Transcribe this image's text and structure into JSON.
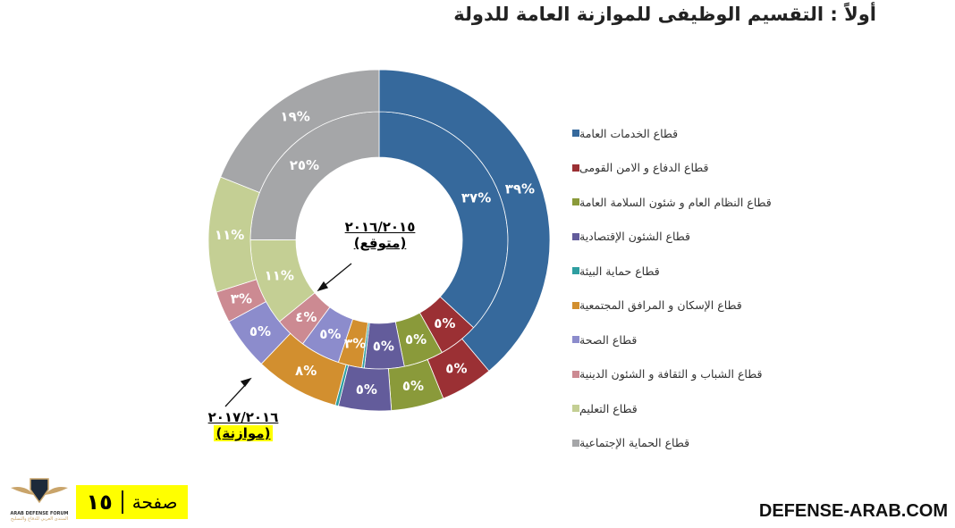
{
  "title": "أولاً : التقسيم الوظيفى للموازنة العامة للدولة",
  "inner_label": {
    "year": "٢٠١٦/٢٠١٥",
    "note": "(متوقع)"
  },
  "outer_label": {
    "year": "٢٠١٧/٢٠١٦",
    "note": "(موازنة)"
  },
  "footer": {
    "page_word": "صفحة",
    "page_number": "١٥",
    "site": "DEFENSE-ARAB.COM",
    "logo_en": "ARAB DEFENSE FORUM",
    "logo_ar": "المنتدى العربي للدفاع والتسليح"
  },
  "chart_data": {
    "type": "pie",
    "subtype": "double-donut",
    "title": "أولاً : التقسيم الوظيفى للموازنة العامة للدولة",
    "legend_position": "right",
    "categories": [
      "قطاع الخدمات العامة",
      "قطاع الدفاع و الامن القومى",
      "قطاع النظام العام و شئون السلامة العامة",
      "قطاع الشئون الإقتصادية",
      "قطاع حماية البيئة",
      "قطاع الإسكان و المرافق المجتمعية",
      "قطاع الصحة",
      "قطاع الشباب و الثقافة و الشئون الدينية",
      "قطاع التعليم",
      "قطاع الحماية الإجتماعية"
    ],
    "colors": [
      "#36699c",
      "#9b3034",
      "#8a9a3a",
      "#635c9b",
      "#2e9ea0",
      "#d28f2f",
      "#8c8ccc",
      "#cc8a92",
      "#c4cf94",
      "#a5a6a8"
    ],
    "series": [
      {
        "name": "٢٠١٦/٢٠١٥ (متوقع)",
        "ring": "inner",
        "values": [
          37,
          5,
          5,
          5,
          0.3,
          3,
          5,
          4,
          11,
          25
        ],
        "labels": [
          "٣٧%",
          "٥%",
          "٥%",
          "٥%",
          "",
          "٣%",
          "٥%",
          "٤%",
          "١١%",
          "٢٥%"
        ]
      },
      {
        "name": "٢٠١٧/٢٠١٦ (موازنة)",
        "ring": "outer",
        "values": [
          39,
          5,
          5,
          5,
          0.3,
          8,
          5,
          3,
          11,
          19
        ],
        "labels": [
          "٣٩%",
          "٥%",
          "٥%",
          "٥%",
          "",
          "٨%",
          "٥%",
          "٣%",
          "١١%",
          "١٩%"
        ]
      }
    ]
  }
}
